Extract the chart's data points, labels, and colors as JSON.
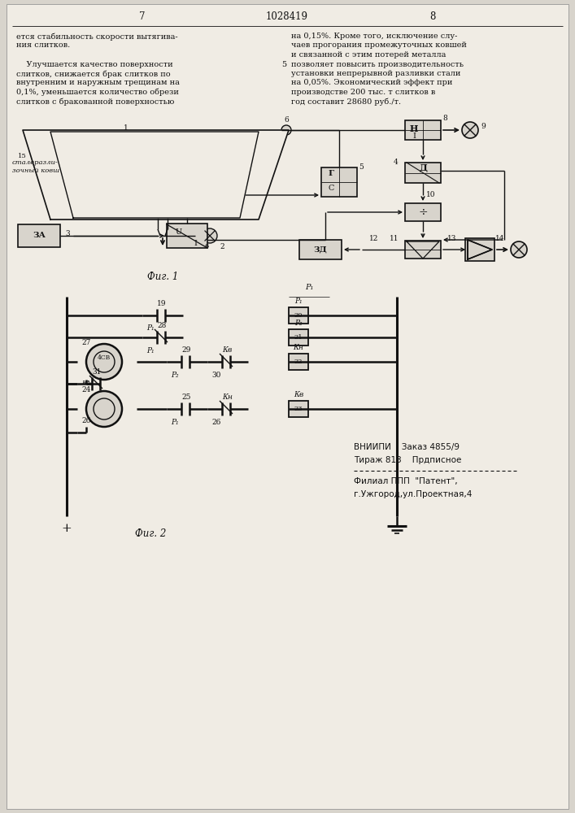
{
  "page_number_left": "7",
  "page_number_center": "1028419",
  "page_number_right": "8",
  "text_left_lines": [
    "ется стабильность скорости вытягива-",
    "ния слитков.",
    "",
    "    Улучшается качество поверхности",
    "слитков, снижается брак слитков по",
    "внутренним и наружным трещинам на",
    "0,1%, уменьшается количество обрези",
    "слитков с бракованной поверхностью"
  ],
  "text_right_lines": [
    "на 0,15%. Кроме того, исключение слу-",
    "чаев прогорания промежуточных ковшей",
    "и связанной с этим потерей металла",
    "позволяет повысить производительность",
    "установки непрерывной разливки стали",
    "на 0,05%. Экономический эффект при",
    "производстве 200 тыс. т слитков в",
    "год составит 28680 руб./т."
  ],
  "line5_marker": "5",
  "fig1_label": "Фиг. 1",
  "fig2_label": "Фиг. 2",
  "footer_line1": "ВНИИПИ    Заказ 4855/9",
  "footer_line2": "Тираж 813    Прдписное",
  "footer_line3": "Филиал ППП  \"Патент\",",
  "footer_line4": "г.Ужгород,ул.Проектная,4",
  "bg_color": "#d8d4cc",
  "line_color": "#111111"
}
